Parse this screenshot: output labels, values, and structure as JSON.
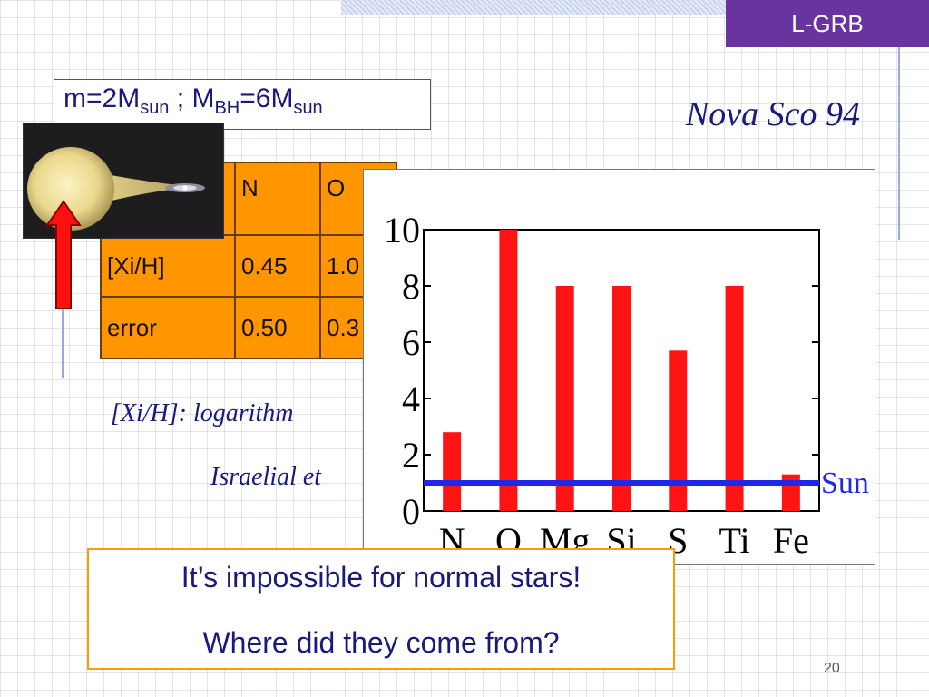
{
  "slide": {
    "tag": "L-GRB",
    "mass_box": {
      "m_prefix": "m=2M",
      "m_sub": "sun",
      "sep": " ; M",
      "bh_sub": "BH",
      "bh_mid": "=6M",
      "bh_sub2": "sun"
    },
    "title": "Nova Sco 94",
    "table": {
      "header": [
        "",
        "N",
        "O"
      ],
      "rows": [
        {
          "label": "[Xi/H]",
          "cells": [
            "0.45",
            "1.0"
          ]
        },
        {
          "label": "error",
          "cells": [
            "0.50",
            "0.3"
          ]
        }
      ]
    },
    "note": "[Xi/H]: logarithm",
    "reference": "Israelial et",
    "callout": {
      "line1": "It’s impossible for normal stars!",
      "line2": "Where did they come from?"
    },
    "page_number": "20",
    "colors": {
      "tag_bg": "#6a34a0",
      "table_bg": "#ff9600",
      "text_navy": "#1a1a7a",
      "bar_red": "#ff1414",
      "sun_line_blue": "#1e28e6",
      "callout_border": "#ff9a00"
    },
    "icons": [
      "binary-star-illustration",
      "up-arrow-icon"
    ]
  },
  "chart_data": {
    "type": "bar",
    "categories": [
      "N",
      "O",
      "Mg",
      "Si",
      "S",
      "Ti",
      "Fe"
    ],
    "values": [
      2.8,
      10,
      8,
      8,
      5.7,
      8,
      1.3
    ],
    "ylim": [
      0,
      10
    ],
    "yticks": [
      0,
      2,
      4,
      6,
      8,
      10
    ],
    "reference_line": {
      "label": "Sun",
      "value": 1
    },
    "grid": false,
    "title": "",
    "xlabel": "",
    "ylabel": ""
  }
}
